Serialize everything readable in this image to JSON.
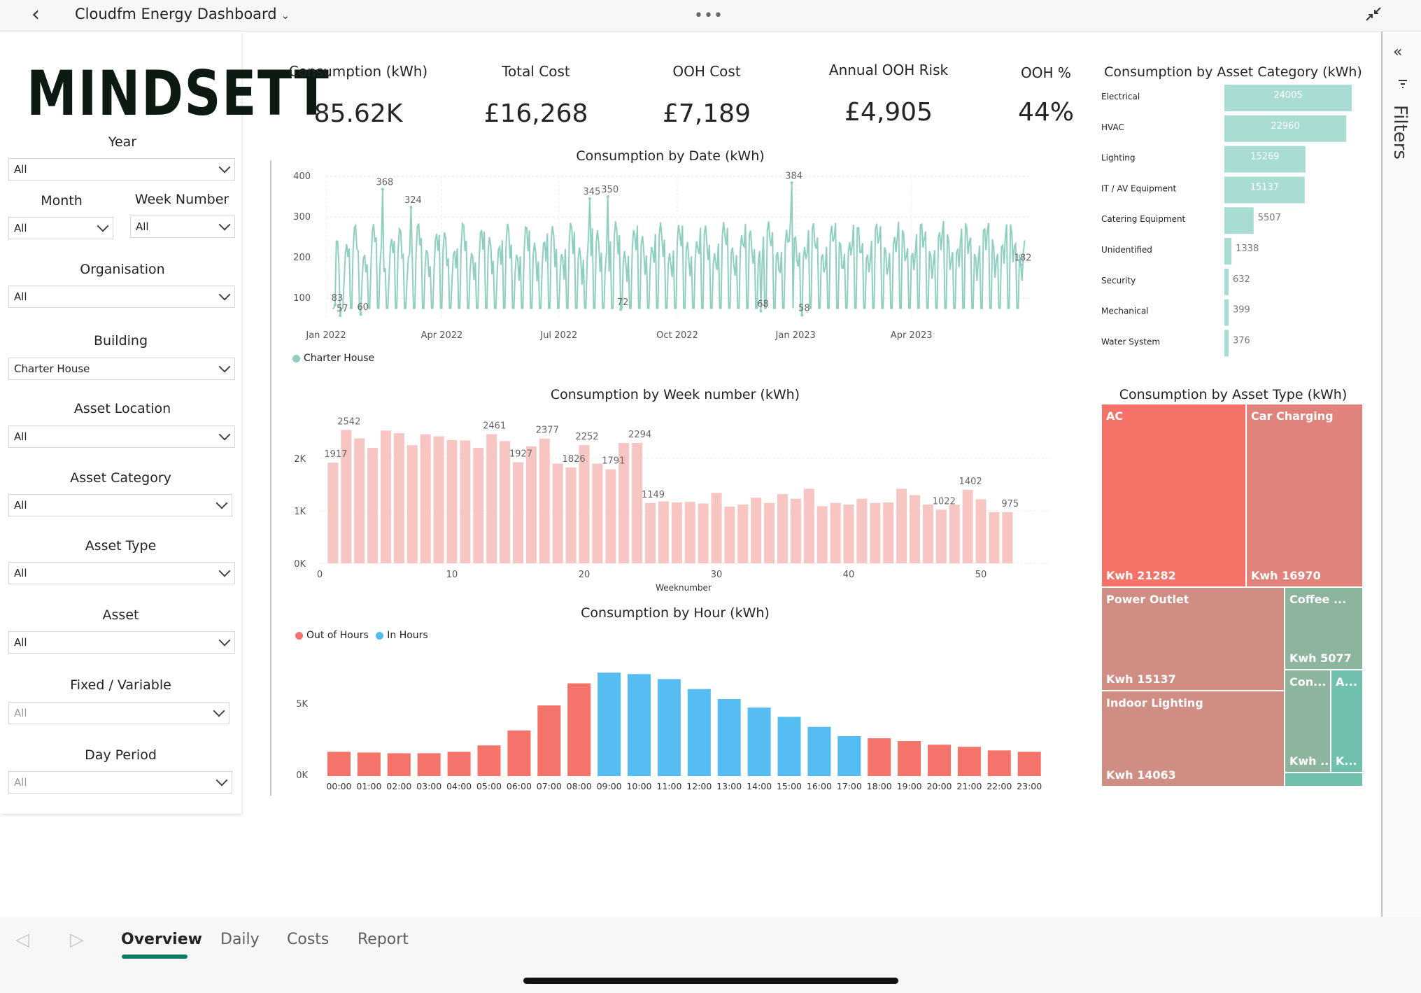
{
  "app": {
    "title": "Cloudfm Energy Dashboard",
    "logo_text": "MINDSETT"
  },
  "filters_pane": {
    "label": "Filters"
  },
  "slicers": [
    {
      "label": "Year",
      "value": "All"
    },
    {
      "label": "Month",
      "value": "All"
    },
    {
      "label": "Week Number",
      "value": "All"
    },
    {
      "label": "Organisation",
      "value": "All"
    },
    {
      "label": "Building",
      "value": "Charter House"
    },
    {
      "label": "Asset Location",
      "value": "All"
    },
    {
      "label": "Asset Category",
      "value": "All"
    },
    {
      "label": "Asset Type",
      "value": "All"
    },
    {
      "label": "Asset",
      "value": "All"
    },
    {
      "label": "Fixed / Variable",
      "value": "All"
    },
    {
      "label": "Day Period",
      "value": "All"
    }
  ],
  "kpis": [
    {
      "title": "Consumption (kWh)",
      "value": "85.62K"
    },
    {
      "title": "Total Cost",
      "value": "£16,268"
    },
    {
      "title": "OOH Cost",
      "value": "£7,189"
    },
    {
      "title": "Annual OOH Risk",
      "value": "£4,905"
    },
    {
      "title": "OOH %",
      "value": "44%"
    }
  ],
  "colors": {
    "teal": "#8fcfc0",
    "pink": "#f7c6c2",
    "red": "#f4736a",
    "blue": "#56bdf3",
    "treemap_red": "#f57268",
    "treemap_rose": "#e0837c",
    "treemap_mauve": "#cf8d83",
    "treemap_green": "#8db59e",
    "treemap_teal": "#6fc1ad",
    "accent": "#0e7c62"
  },
  "chart_data": [
    {
      "type": "line",
      "title": "Consumption by Date (kWh)",
      "legend": [
        "Charter House"
      ],
      "legend_position": "bottom-left",
      "ylim": [
        50,
        400
      ],
      "y_ticks": [
        "400",
        "300",
        "200",
        "100"
      ],
      "x_ticks": [
        "Jan 2022",
        "Apr 2022",
        "Jul 2022",
        "Oct 2022",
        "Jan 2023",
        "Apr 2023"
      ],
      "grid": true,
      "labeled_points": [
        {
          "x": "2022-01-08",
          "y": 83,
          "label": "83"
        },
        {
          "x": "2022-01-12",
          "y": 57,
          "label": "57"
        },
        {
          "x": "2022-01-28",
          "y": 60,
          "label": "60"
        },
        {
          "x": "2022-02-14",
          "y": 368,
          "label": "368"
        },
        {
          "x": "2022-03-08",
          "y": 324,
          "label": "324"
        },
        {
          "x": "2022-07-25",
          "y": 345,
          "label": "345"
        },
        {
          "x": "2022-08-08",
          "y": 350,
          "label": "350"
        },
        {
          "x": "2022-08-18",
          "y": 72,
          "label": "72"
        },
        {
          "x": "2022-12-05",
          "y": 68,
          "label": "68"
        },
        {
          "x": "2022-12-29",
          "y": 384,
          "label": "384"
        },
        {
          "x": "2023-01-06",
          "y": 58,
          "label": "58"
        },
        {
          "x": "2023-06-25",
          "y": 182,
          "label": "182"
        }
      ]
    },
    {
      "type": "bar",
      "title": "Consumption by Week number (kWh)",
      "xlabel": "Weeknumber",
      "x_ticks": [
        "0",
        "10",
        "20",
        "30",
        "40",
        "50"
      ],
      "y_ticks": [
        "2K",
        "1K",
        "0K"
      ],
      "ylim": [
        0,
        2800
      ],
      "x": [
        1,
        2,
        3,
        4,
        5,
        6,
        7,
        8,
        9,
        10,
        11,
        12,
        13,
        14,
        15,
        16,
        17,
        18,
        19,
        20,
        21,
        22,
        23,
        24,
        25,
        26,
        27,
        28,
        29,
        30,
        31,
        32,
        33,
        34,
        35,
        36,
        37,
        38,
        39,
        40,
        41,
        42,
        43,
        44,
        45,
        46,
        47,
        48,
        49,
        50,
        51,
        52
      ],
      "values": [
        1917,
        2542,
        2380,
        2200,
        2530,
        2480,
        2250,
        2460,
        2420,
        2350,
        2340,
        2200,
        2461,
        2330,
        1927,
        2230,
        2377,
        1900,
        1826,
        2252,
        1900,
        1791,
        2294,
        2294,
        1149,
        1180,
        1160,
        1170,
        1140,
        1340,
        1080,
        1120,
        1250,
        1150,
        1320,
        1230,
        1420,
        1090,
        1150,
        1120,
        1230,
        1150,
        1160,
        1420,
        1300,
        1120,
        1022,
        1120,
        1402,
        1220,
        975,
        975
      ],
      "labeled_values": [
        "1917",
        "2542",
        "2461",
        "1927",
        "2377",
        "1826",
        "2252",
        "1791",
        "2294",
        "1149",
        "1022",
        "1402",
        "975"
      ]
    },
    {
      "type": "bar",
      "title": "Consumption by Hour (kWh)",
      "legend": [
        "Out of Hours",
        "In Hours"
      ],
      "legend_position": "top-left",
      "categories": [
        "00:00",
        "01:00",
        "02:00",
        "03:00",
        "04:00",
        "05:00",
        "06:00",
        "07:00",
        "08:00",
        "09:00",
        "10:00",
        "11:00",
        "12:00",
        "13:00",
        "14:00",
        "15:00",
        "16:00",
        "17:00",
        "18:00",
        "19:00",
        "20:00",
        "21:00",
        "22:00",
        "23:00"
      ],
      "values": [
        1700,
        1650,
        1600,
        1600,
        1700,
        2150,
        3200,
        4950,
        6500,
        7250,
        7150,
        6800,
        6100,
        5400,
        4800,
        4150,
        3450,
        2800,
        2650,
        2450,
        2200,
        2050,
        1800,
        1700
      ],
      "series_of_each": [
        "Out of Hours",
        "Out of Hours",
        "Out of Hours",
        "Out of Hours",
        "Out of Hours",
        "Out of Hours",
        "Out of Hours",
        "Out of Hours",
        "Out of Hours",
        "In Hours",
        "In Hours",
        "In Hours",
        "In Hours",
        "In Hours",
        "In Hours",
        "In Hours",
        "In Hours",
        "In Hours",
        "Out of Hours",
        "Out of Hours",
        "Out of Hours",
        "Out of Hours",
        "Out of Hours",
        "Out of Hours"
      ],
      "y_ticks": [
        "5K",
        "0K"
      ],
      "ylim": [
        0,
        7800
      ]
    },
    {
      "type": "bar",
      "orientation": "horizontal",
      "title": "Consumption by Asset Category (kWh)",
      "categories": [
        "Electrical",
        "HVAC",
        "Lighting",
        "IT / AV Equipment",
        "Catering Equipment",
        "Unidentified",
        "Security",
        "Mechanical",
        "Water System"
      ],
      "values": [
        24005,
        22960,
        15269,
        15137,
        5507,
        1338,
        632,
        399,
        376
      ],
      "labels": [
        "24005",
        "22960",
        "15269",
        "15137",
        "5507",
        "1338",
        "632",
        "399",
        "376"
      ]
    },
    {
      "type": "treemap",
      "title": "Consumption by Asset Type (kWh)",
      "items": [
        {
          "name": "AC",
          "value_label": "Kwh 21282",
          "value": 21282
        },
        {
          "name": "Car Charging",
          "value_label": "Kwh 16970",
          "value": 16970
        },
        {
          "name": "Power Outlet",
          "value_label": "Kwh 15137",
          "value": 15137
        },
        {
          "name": "Coffee ...",
          "value_label": "Kwh 5077",
          "value": 5077
        },
        {
          "name": "Con...",
          "value_label": "Kwh ...",
          "value": null
        },
        {
          "name": "A...",
          "value_label": "K...",
          "value": null
        },
        {
          "name": "Indoor Lighting",
          "value_label": "Kwh 14063",
          "value": 14063
        }
      ]
    }
  ],
  "pages": {
    "tabs": [
      "Overview",
      "Daily",
      "Costs",
      "Report"
    ],
    "active": "Overview"
  }
}
